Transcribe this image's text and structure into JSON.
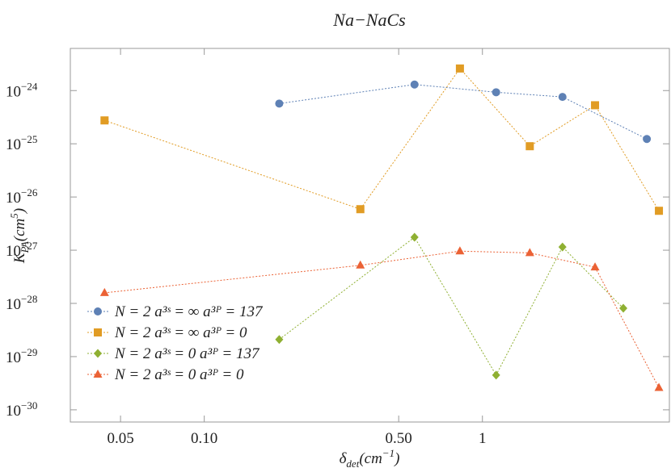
{
  "chart_data": {
    "type": "scatter-line",
    "title": "Na−NaCs",
    "xlabel": {
      "text": "δ",
      "sub": "det",
      "unit": "(cm",
      "sup": "−1",
      "close": ")"
    },
    "ylabel": {
      "text": "K",
      "sub": "PA",
      "unit": "(cm",
      "sup": "5",
      "close": ")"
    },
    "xscale": "log",
    "yscale": "log",
    "xlim": [
      0.033,
      4.7
    ],
    "ylim": [
      5.9e-31,
      6.2e-24
    ],
    "xticks": [
      0.05,
      {
        "value": 0.1,
        "label": "0.10"
      },
      {
        "value": 0.5,
        "label": "0.50"
      },
      1
    ],
    "yticks": [
      {
        "value": 1e-24,
        "label": "10",
        "power": "−24"
      },
      {
        "value": 1e-25,
        "label": "10",
        "power": "−25"
      },
      {
        "value": 1e-26,
        "label": "10",
        "power": "−26"
      },
      {
        "value": 1e-27,
        "label": "10",
        "power": "−27"
      },
      {
        "value": 1e-28,
        "label": "10",
        "power": "−28"
      },
      {
        "value": 1e-29,
        "label": "10",
        "power": "−29"
      },
      {
        "value": 1e-30,
        "label": "10",
        "power": "−30"
      }
    ],
    "legend_position": "lower-left",
    "series": [
      {
        "name": "N = 2 a³ˢ = ∞ a³ᴾ = 137",
        "color": "#5e81b5",
        "marker": "circle",
        "x": [
          0.186,
          0.57,
          1.12,
          1.94,
          3.9
        ],
        "values": [
          5.7e-25,
          1.3e-24,
          9.3e-25,
          7.6e-25,
          1.23e-25
        ]
      },
      {
        "name": "N = 2 a³ˢ = ∞ a³ᴾ = 0",
        "color": "#e19c24",
        "marker": "square",
        "x": [
          0.0438,
          0.364,
          0.83,
          1.48,
          2.54,
          4.31
        ],
        "values": [
          2.75e-25,
          5.9e-27,
          2.6e-24,
          9e-26,
          5.3e-25,
          5.5e-27
        ]
      },
      {
        "name": "N = 2 a³ˢ = 0 a³ᴾ = 137",
        "color": "#8fb032",
        "marker": "diamond",
        "x": [
          0.186,
          0.57,
          1.12,
          1.94,
          3.21
        ],
        "values": [
          2.1e-29,
          1.75e-27,
          4.5e-30,
          1.15e-27,
          8.1e-29
        ]
      },
      {
        "name": "N = 2 a³ˢ = 0 a³ᴾ = 0",
        "color": "#eb6235",
        "marker": "triangle",
        "x": [
          0.0438,
          0.364,
          0.83,
          1.48,
          2.54,
          4.31
        ],
        "values": [
          1.58e-28,
          5.2e-28,
          9.6e-28,
          8.9e-28,
          4.8e-28,
          2.6e-30
        ]
      }
    ]
  }
}
